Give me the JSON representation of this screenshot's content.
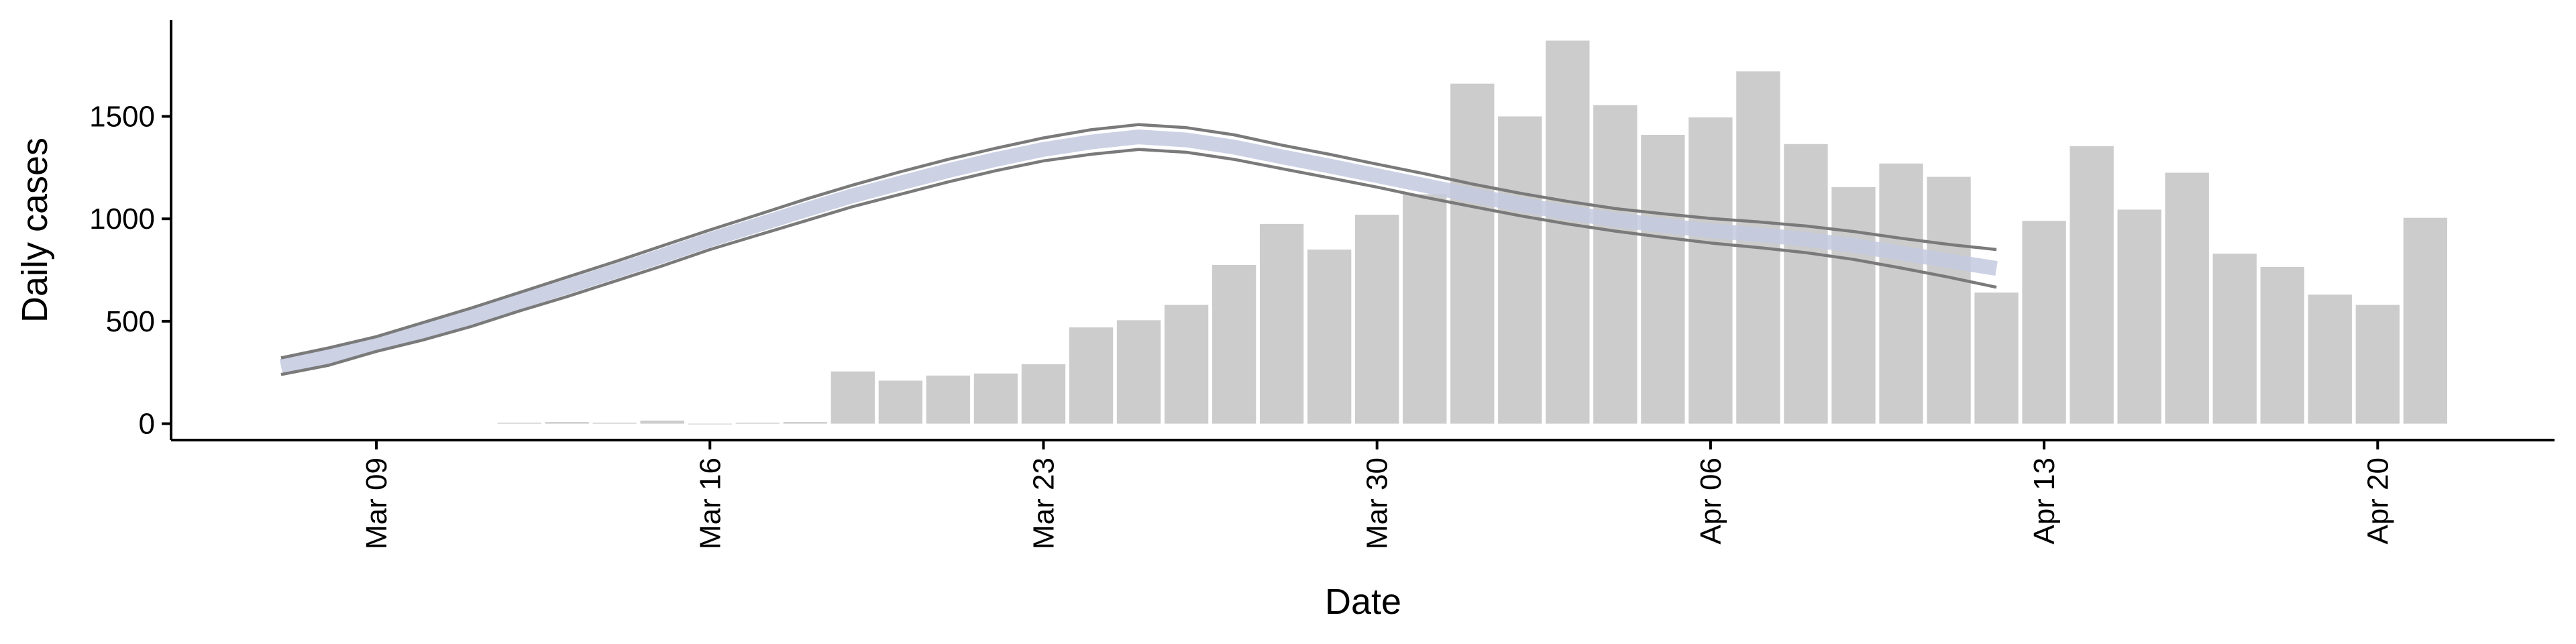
{
  "chart_data": {
    "type": "bar-line",
    "x_label": "Date",
    "y_label": "Daily cases",
    "categories": [
      null,
      null,
      "Mar 09",
      null,
      null,
      null,
      null,
      null,
      null,
      "Mar 16",
      null,
      null,
      null,
      null,
      null,
      null,
      "Mar 23",
      null,
      null,
      null,
      null,
      null,
      null,
      "Mar 30",
      null,
      null,
      null,
      null,
      null,
      null,
      "Apr 06",
      null,
      null,
      null,
      null,
      null,
      null,
      "Apr 13",
      null,
      null,
      null,
      null,
      null,
      null,
      "Apr 20",
      null
    ],
    "values": [
      null,
      null,
      null,
      null,
      null,
      5,
      8,
      5,
      15,
      0,
      5,
      8,
      255,
      210,
      235,
      245,
      290,
      470,
      505,
      580,
      775,
      975,
      850,
      1020,
      1120,
      1660,
      1500,
      1870,
      1555,
      1410,
      1495,
      1720,
      1365,
      1155,
      1270,
      1205,
      640,
      990,
      1355,
      1045,
      1225,
      830,
      765,
      630,
      580,
      1005
    ],
    "color": "#cccccc",
    "series": [
      {
        "color": "#c3cadf",
        "values": [
          280,
          328,
          389,
          453,
          520,
          595,
          668,
          743,
          819,
          898,
          970,
          1043,
          1113,
          1175,
          1235,
          1290,
          1339,
          1375,
          1400,
          1385,
          1350,
          1303,
          1258,
          1211,
          1163,
          1115,
          1070,
          1030,
          995,
          968,
          942,
          923,
          900,
          870,
          833,
          795,
          758,
          null,
          null,
          null,
          null,
          null,
          null,
          null,
          null,
          null
        ]
      },
      {
        "color": "#7a7a7a",
        "values": [
          321,
          370,
          425,
          495,
          565,
          640,
          715,
          790,
          868,
          946,
          1020,
          1095,
          1165,
          1230,
          1290,
          1345,
          1395,
          1435,
          1460,
          1445,
          1410,
          1360,
          1315,
          1267,
          1220,
          1170,
          1125,
          1085,
          1050,
          1025,
          1002,
          985,
          965,
          938,
          905,
          875,
          850,
          null,
          null,
          null,
          null,
          null,
          null,
          null,
          null,
          null
        ]
      },
      {
        "color": "#7a7a7a",
        "values": [
          240,
          285,
          353,
          410,
          475,
          550,
          620,
          695,
          770,
          850,
          920,
          990,
          1060,
          1120,
          1180,
          1235,
          1283,
          1315,
          1339,
          1325,
          1290,
          1245,
          1200,
          1155,
          1105,
          1060,
          1015,
          975,
          940,
          910,
          882,
          860,
          835,
          802,
          760,
          715,
          666,
          null,
          null,
          null,
          null,
          null,
          null,
          null,
          null,
          null
        ]
      }
    ],
    "ylim": [
      -80,
      1970
    ],
    "yticks": [
      0,
      500,
      1000,
      1500
    ]
  }
}
